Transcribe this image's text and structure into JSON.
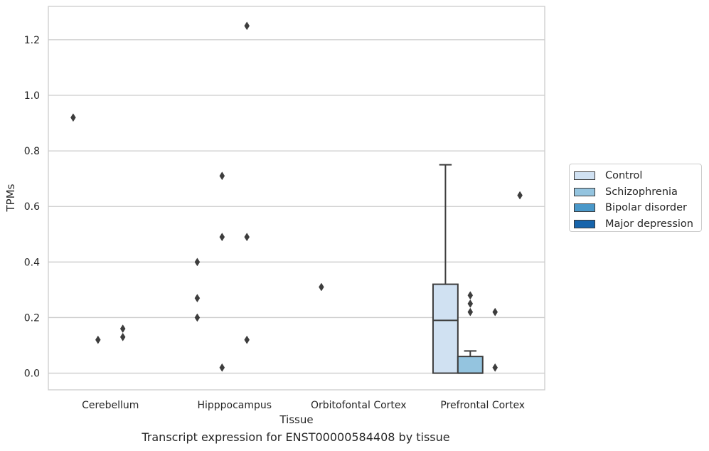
{
  "caption": "Transcript expression for ENST00000584408 by tissue",
  "legend": {
    "items": [
      {
        "label": "Control",
        "color": "#d0e1f2"
      },
      {
        "label": "Schizophrenia",
        "color": "#94c4df"
      },
      {
        "label": "Bipolar disorder",
        "color": "#4a98c9"
      },
      {
        "label": "Major depression",
        "color": "#1764ab"
      }
    ]
  },
  "chart_data": {
    "type": "box",
    "xlabel": "Tissue",
    "ylabel": "TPMs",
    "ylim": [
      -0.06,
      1.32
    ],
    "yticks": [
      "0.0",
      "0.2",
      "0.4",
      "0.6",
      "0.8",
      "1.0",
      "1.2"
    ],
    "grid": true,
    "legend_placement": "outside right",
    "categories": [
      "Cerebellum",
      "Hipppocampus",
      "Orbitofontal Cortex",
      "Prefrontal Cortex"
    ],
    "series": [
      {
        "name": "Control",
        "color": "#d0e1f2",
        "boxes": [
          {
            "q1": 0,
            "median": 0,
            "q3": 0,
            "whisker_low": 0,
            "whisker_high": 0,
            "outliers": [
              0.92
            ]
          },
          {
            "q1": 0,
            "median": 0,
            "q3": 0,
            "whisker_low": 0,
            "whisker_high": 0,
            "outliers": [
              0.4,
              0.27,
              0.2
            ]
          },
          {
            "q1": 0,
            "median": 0,
            "q3": 0,
            "whisker_low": 0,
            "whisker_high": 0,
            "outliers": [
              0.31
            ]
          },
          {
            "q1": 0,
            "median": 0.19,
            "q3": 0.32,
            "whisker_low": 0,
            "whisker_high": 0.75,
            "outliers": []
          }
        ]
      },
      {
        "name": "Schizophrenia",
        "color": "#94c4df",
        "boxes": [
          {
            "q1": 0,
            "median": 0,
            "q3": 0,
            "whisker_low": 0,
            "whisker_high": 0,
            "outliers": [
              0.12
            ]
          },
          {
            "q1": 0,
            "median": 0,
            "q3": 0,
            "whisker_low": 0,
            "whisker_high": 0,
            "outliers": [
              0.71,
              0.49,
              0.02
            ]
          },
          {
            "q1": 0,
            "median": 0,
            "q3": 0,
            "whisker_low": 0,
            "whisker_high": 0,
            "outliers": []
          },
          {
            "q1": 0,
            "median": 0,
            "q3": 0.06,
            "whisker_low": 0,
            "whisker_high": 0.08,
            "outliers": [
              0.28,
              0.25,
              0.22
            ]
          }
        ]
      },
      {
        "name": "Bipolar disorder",
        "color": "#4a98c9",
        "boxes": [
          {
            "q1": 0,
            "median": 0,
            "q3": 0,
            "whisker_low": 0,
            "whisker_high": 0,
            "outliers": [
              0.16,
              0.13
            ]
          },
          {
            "q1": 0,
            "median": 0,
            "q3": 0,
            "whisker_low": 0,
            "whisker_high": 0,
            "outliers": [
              1.25,
              0.49,
              0.12
            ]
          },
          {
            "q1": 0,
            "median": 0,
            "q3": 0,
            "whisker_low": 0,
            "whisker_high": 0,
            "outliers": []
          },
          {
            "q1": 0,
            "median": 0,
            "q3": 0,
            "whisker_low": 0,
            "whisker_high": 0,
            "outliers": [
              0.22,
              0.02
            ]
          }
        ]
      },
      {
        "name": "Major depression",
        "color": "#1764ab",
        "boxes": [
          {
            "q1": 0,
            "median": 0,
            "q3": 0,
            "whisker_low": 0,
            "whisker_high": 0,
            "outliers": []
          },
          {
            "q1": 0,
            "median": 0,
            "q3": 0,
            "whisker_low": 0,
            "whisker_high": 0,
            "outliers": []
          },
          {
            "q1": 0,
            "median": 0,
            "q3": 0,
            "whisker_low": 0,
            "whisker_high": 0,
            "outliers": []
          },
          {
            "q1": 0,
            "median": 0,
            "q3": 0,
            "whisker_low": 0,
            "whisker_high": 0,
            "outliers": [
              0.64
            ]
          }
        ]
      }
    ]
  }
}
